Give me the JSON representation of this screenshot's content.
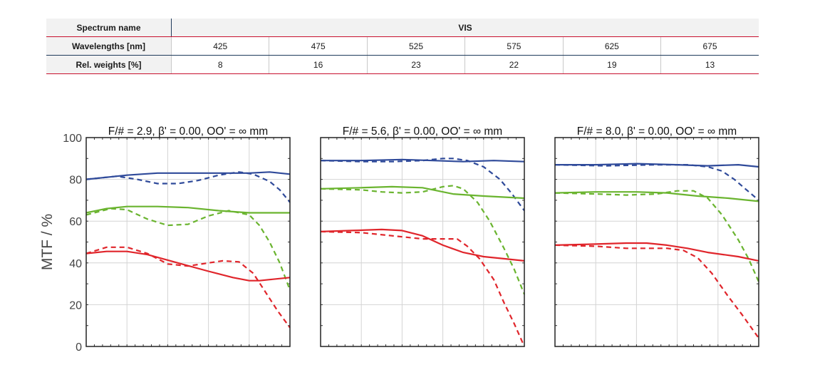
{
  "table": {
    "spectrum_label": "Spectrum name",
    "spectrum_value": "VIS",
    "wavelengths_label": "Wavelengths [nm]",
    "wavelengths": [
      "425",
      "475",
      "525",
      "575",
      "625",
      "675"
    ],
    "weights_label": "Rel. weights [%]",
    "weights": [
      "8",
      "16",
      "23",
      "22",
      "19",
      "13"
    ]
  },
  "colors": {
    "blue": "#2f4a9a",
    "green": "#6ab42f",
    "red": "#e0252b",
    "table_red": "#c8102e",
    "table_navy": "#1f3b5c"
  },
  "chart_data": [
    {
      "type": "line",
      "title": "F/# = 2.9, β' = 0.00, OO' = ∞ mm",
      "ylabel": "MTF / %",
      "ylim": [
        0,
        100
      ],
      "yticks": [
        0,
        20,
        40,
        60,
        80,
        100
      ],
      "xlim": [
        0,
        1
      ],
      "grid": true,
      "series": [
        {
          "color": "blue",
          "dash": false,
          "x": [
            0,
            0.1,
            0.2,
            0.35,
            0.5,
            0.65,
            0.8,
            0.9,
            1.0
          ],
          "y": [
            80,
            81,
            82,
            83,
            83,
            83,
            83,
            83.5,
            82.5
          ]
        },
        {
          "color": "blue",
          "dash": true,
          "x": [
            0,
            0.15,
            0.25,
            0.35,
            0.45,
            0.55,
            0.65,
            0.75,
            0.82,
            0.9,
            0.95,
            1.0
          ],
          "y": [
            80,
            81.5,
            80,
            78,
            78,
            79.5,
            82,
            83.5,
            82.5,
            79,
            75,
            69
          ]
        },
        {
          "color": "green",
          "dash": false,
          "x": [
            0,
            0.1,
            0.2,
            0.35,
            0.5,
            0.65,
            0.8,
            1.0
          ],
          "y": [
            64,
            66,
            67,
            67,
            66.5,
            65,
            64,
            64
          ]
        },
        {
          "color": "green",
          "dash": true,
          "x": [
            0,
            0.12,
            0.2,
            0.3,
            0.4,
            0.5,
            0.6,
            0.7,
            0.8,
            0.85,
            0.9,
            0.95,
            1.0
          ],
          "y": [
            63,
            66,
            65.5,
            61,
            58,
            58.5,
            62.5,
            65,
            63,
            58,
            50,
            40,
            27
          ]
        },
        {
          "color": "red",
          "dash": false,
          "x": [
            0,
            0.1,
            0.2,
            0.3,
            0.45,
            0.6,
            0.72,
            0.8,
            0.85,
            0.9,
            1.0
          ],
          "y": [
            44.5,
            45.5,
            45.5,
            44,
            40,
            36,
            33,
            31.5,
            31.5,
            32,
            33
          ]
        },
        {
          "color": "red",
          "dash": true,
          "x": [
            0,
            0.1,
            0.2,
            0.3,
            0.4,
            0.5,
            0.6,
            0.67,
            0.75,
            0.82,
            0.88,
            0.94,
            1.0
          ],
          "y": [
            44.5,
            47.5,
            47.5,
            44.5,
            39.5,
            38.5,
            40,
            41,
            40.5,
            35,
            26,
            17,
            9
          ]
        }
      ]
    },
    {
      "type": "line",
      "title": "F/# = 5.6, β' = 0.00, OO' = ∞ mm",
      "ylabel": "",
      "ylim": [
        0,
        100
      ],
      "xlim": [
        0,
        1
      ],
      "grid": true,
      "series": [
        {
          "color": "blue",
          "dash": false,
          "x": [
            0,
            0.2,
            0.4,
            0.55,
            0.7,
            0.85,
            1.0
          ],
          "y": [
            89,
            89,
            89.5,
            89,
            88.5,
            89,
            88.5
          ]
        },
        {
          "color": "blue",
          "dash": true,
          "x": [
            0,
            0.2,
            0.35,
            0.5,
            0.6,
            0.65,
            0.72,
            0.8,
            0.88,
            0.94,
            1.0
          ],
          "y": [
            89,
            88.5,
            88.5,
            89,
            90,
            90,
            89,
            86,
            80,
            73,
            65
          ]
        },
        {
          "color": "green",
          "dash": false,
          "x": [
            0,
            0.2,
            0.35,
            0.5,
            0.65,
            0.8,
            1.0
          ],
          "y": [
            75.5,
            76,
            76.5,
            76,
            73,
            72,
            71
          ]
        },
        {
          "color": "green",
          "dash": true,
          "x": [
            0,
            0.2,
            0.3,
            0.4,
            0.5,
            0.6,
            0.65,
            0.7,
            0.77,
            0.83,
            0.9,
            0.95,
            1.0
          ],
          "y": [
            75.5,
            75,
            74,
            73.5,
            74,
            76.5,
            77,
            75.5,
            69,
            60,
            47,
            37,
            25
          ]
        },
        {
          "color": "red",
          "dash": false,
          "x": [
            0,
            0.15,
            0.3,
            0.4,
            0.5,
            0.6,
            0.7,
            0.8,
            0.9,
            1.0
          ],
          "y": [
            55,
            55.5,
            56,
            55.5,
            53,
            48.5,
            45,
            43,
            42,
            41
          ]
        },
        {
          "color": "red",
          "dash": true,
          "x": [
            0,
            0.2,
            0.35,
            0.5,
            0.6,
            0.67,
            0.72,
            0.78,
            0.85,
            0.9,
            0.95,
            1.0
          ],
          "y": [
            55,
            54.5,
            53,
            51.5,
            51.5,
            51.5,
            48,
            42,
            32,
            21,
            11,
            0
          ]
        }
      ]
    },
    {
      "type": "line",
      "title": "F/# = 8.0, β' = 0.00, OO' = ∞ mm",
      "ylabel": "",
      "ylim": [
        0,
        100
      ],
      "xlim": [
        0,
        1
      ],
      "grid": true,
      "series": [
        {
          "color": "blue",
          "dash": false,
          "x": [
            0,
            0.2,
            0.4,
            0.6,
            0.75,
            0.9,
            1.0
          ],
          "y": [
            87,
            87,
            87.5,
            87,
            86.5,
            87,
            86
          ]
        },
        {
          "color": "blue",
          "dash": true,
          "x": [
            0,
            0.25,
            0.5,
            0.65,
            0.75,
            0.82,
            0.88,
            0.94,
            1.0
          ],
          "y": [
            87,
            86.5,
            87,
            87,
            86,
            84,
            80,
            75,
            70
          ]
        },
        {
          "color": "green",
          "dash": false,
          "x": [
            0,
            0.2,
            0.4,
            0.55,
            0.7,
            0.85,
            1.0
          ],
          "y": [
            73.5,
            74,
            74,
            73.5,
            72,
            71,
            69.5
          ]
        },
        {
          "color": "green",
          "dash": true,
          "x": [
            0,
            0.2,
            0.35,
            0.5,
            0.6,
            0.68,
            0.75,
            0.82,
            0.9,
            0.95,
            1.0
          ],
          "y": [
            73.5,
            73,
            72.5,
            73,
            74.5,
            74.5,
            71,
            63,
            51,
            42,
            31
          ]
        },
        {
          "color": "red",
          "dash": false,
          "x": [
            0,
            0.2,
            0.35,
            0.45,
            0.55,
            0.65,
            0.75,
            0.9,
            1.0
          ],
          "y": [
            48.5,
            49,
            49.5,
            49.5,
            48.5,
            47,
            45,
            43,
            41
          ]
        },
        {
          "color": "red",
          "dash": true,
          "x": [
            0,
            0.2,
            0.35,
            0.45,
            0.55,
            0.63,
            0.7,
            0.77,
            0.85,
            0.92,
            1.0
          ],
          "y": [
            48.5,
            48,
            47,
            47,
            47,
            46,
            42.5,
            35,
            24,
            15,
            4
          ]
        }
      ]
    }
  ]
}
